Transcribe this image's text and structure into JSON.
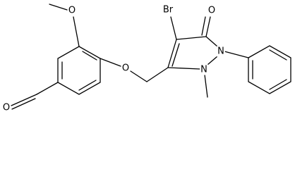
{
  "nodes": [
    {
      "label": "O"
    },
    {
      "label": "O"
    },
    {
      "label": "Br"
    },
    {
      "label": "O"
    },
    {
      "label": "N"
    },
    {
      "label": "N"
    },
    {
      "label": "O"
    }
  ]
}
